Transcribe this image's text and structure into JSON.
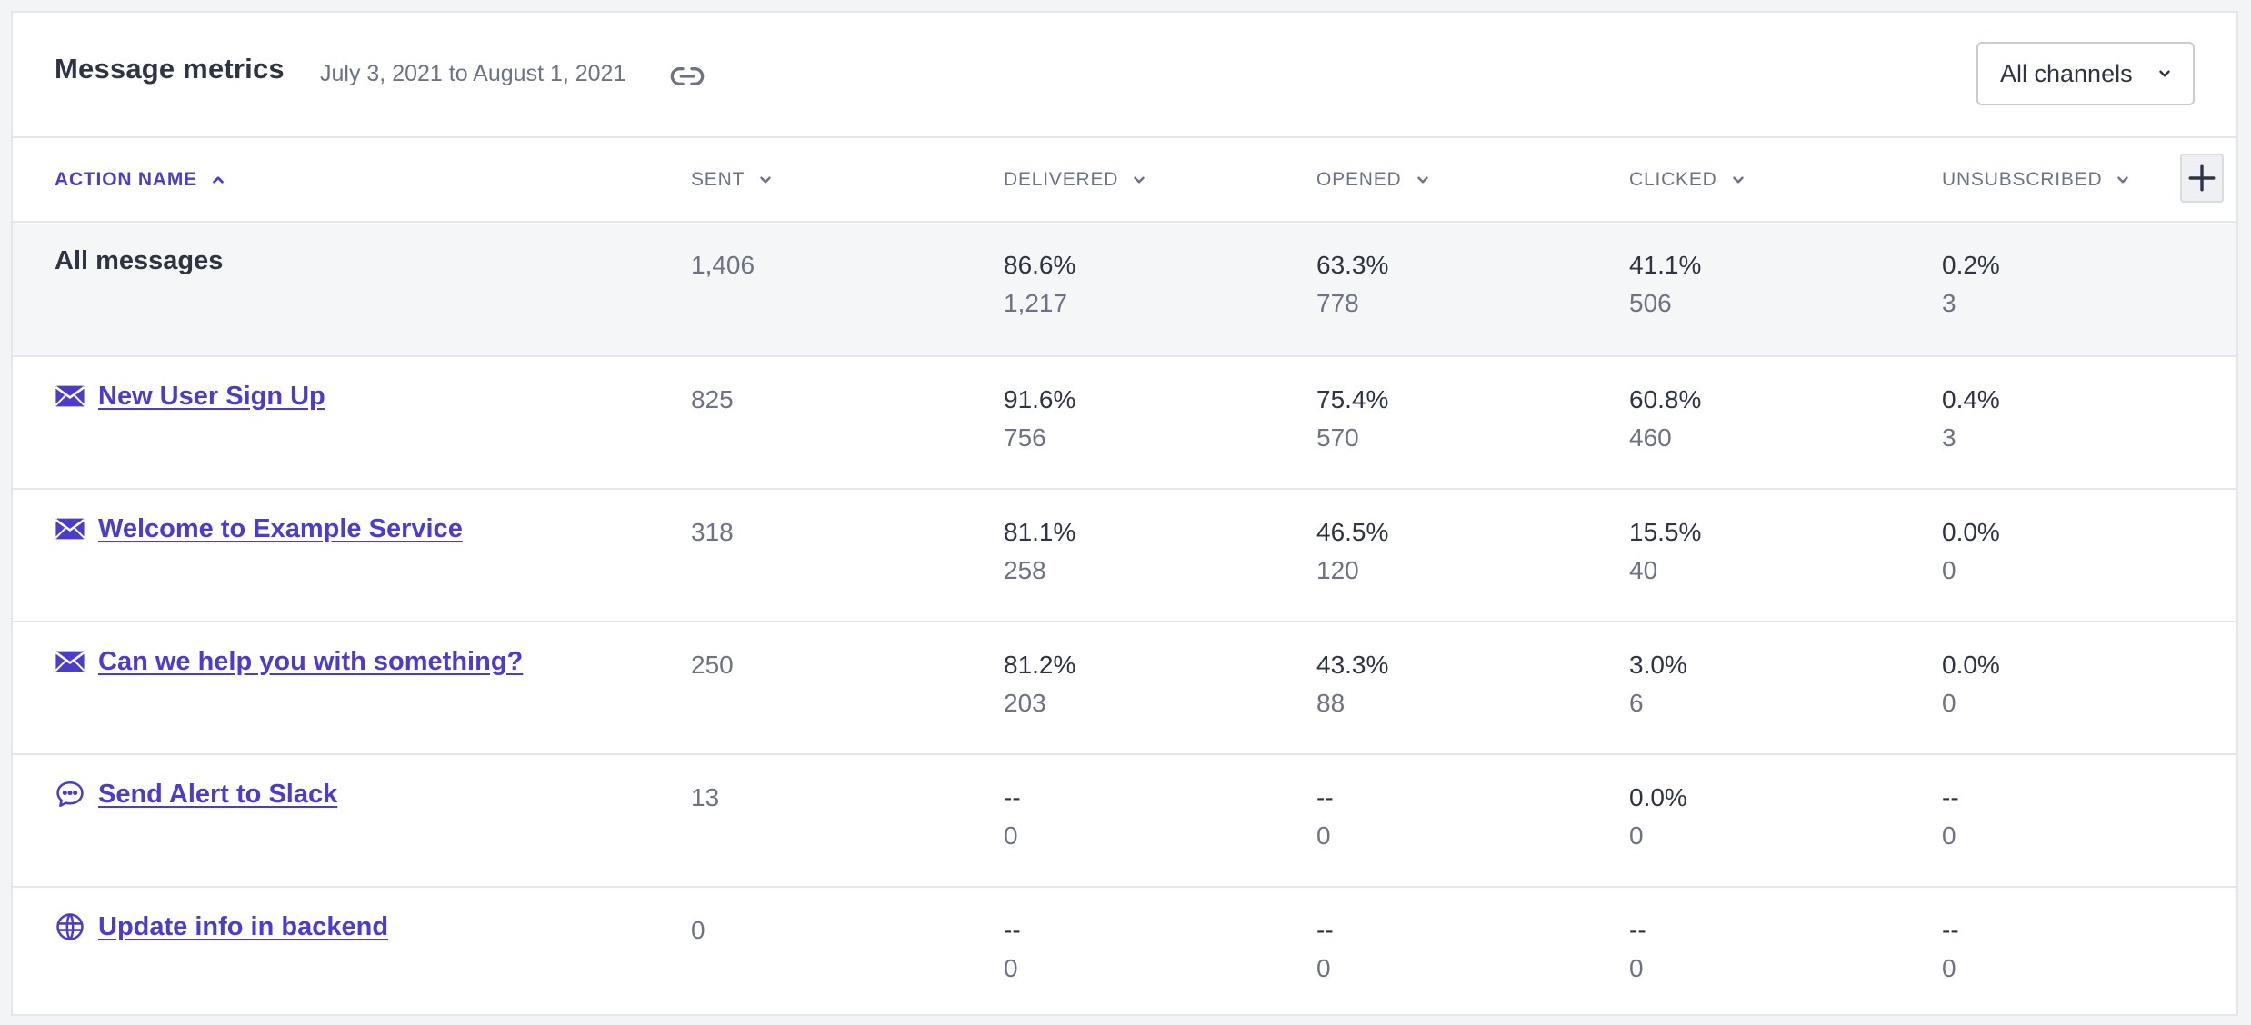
{
  "header": {
    "title": "Message metrics",
    "date_range": "July 3, 2021 to August 1, 2021",
    "channel_select": "All channels"
  },
  "columns": {
    "action_name": "ACTION NAME",
    "sent": "SENT",
    "delivered": "DELIVERED",
    "opened": "OPENED",
    "clicked": "CLICKED",
    "unsubscribed": "UNSUBSCRIBED"
  },
  "total": {
    "name": "All messages",
    "sent": "1,406",
    "delivered_pct": "86.6%",
    "delivered": "1,217",
    "opened_pct": "63.3%",
    "opened": "778",
    "clicked_pct": "41.1%",
    "clicked": "506",
    "unsub_pct": "0.2%",
    "unsub": "3"
  },
  "rows": [
    {
      "icon": "envelope-icon",
      "name": "New User Sign Up",
      "sent": "825",
      "delivered_pct": "91.6%",
      "delivered": "756",
      "opened_pct": "75.4%",
      "opened": "570",
      "clicked_pct": "60.8%",
      "clicked": "460",
      "unsub_pct": "0.4%",
      "unsub": "3"
    },
    {
      "icon": "envelope-icon",
      "name": "Welcome to Example Service",
      "sent": "318",
      "delivered_pct": "81.1%",
      "delivered": "258",
      "opened_pct": "46.5%",
      "opened": "120",
      "clicked_pct": "15.5%",
      "clicked": "40",
      "unsub_pct": "0.0%",
      "unsub": "0"
    },
    {
      "icon": "envelope-icon",
      "name": "Can we help you with something?",
      "sent": "250",
      "delivered_pct": "81.2%",
      "delivered": "203",
      "opened_pct": "43.3%",
      "opened": "88",
      "clicked_pct": "3.0%",
      "clicked": "6",
      "unsub_pct": "0.0%",
      "unsub": "0"
    },
    {
      "icon": "chat-bubble-icon",
      "name": "Send Alert to Slack",
      "sent": "13",
      "delivered_pct": "--",
      "delivered": "0",
      "opened_pct": "--",
      "opened": "0",
      "clicked_pct": "0.0%",
      "clicked": "0",
      "unsub_pct": "--",
      "unsub": "0"
    },
    {
      "icon": "globe-icon",
      "name": "Update info in backend",
      "sent": "0",
      "delivered_pct": "--",
      "delivered": "0",
      "opened_pct": "--",
      "opened": "0",
      "clicked_pct": "--",
      "clicked": "0",
      "unsub_pct": "--",
      "unsub": "0"
    }
  ],
  "colors": {
    "accent": "#4b3cc9",
    "text": "#2f3442",
    "muted": "#6e7383",
    "border": "#e4e6eb",
    "total_row_bg": "#f5f6f8"
  }
}
